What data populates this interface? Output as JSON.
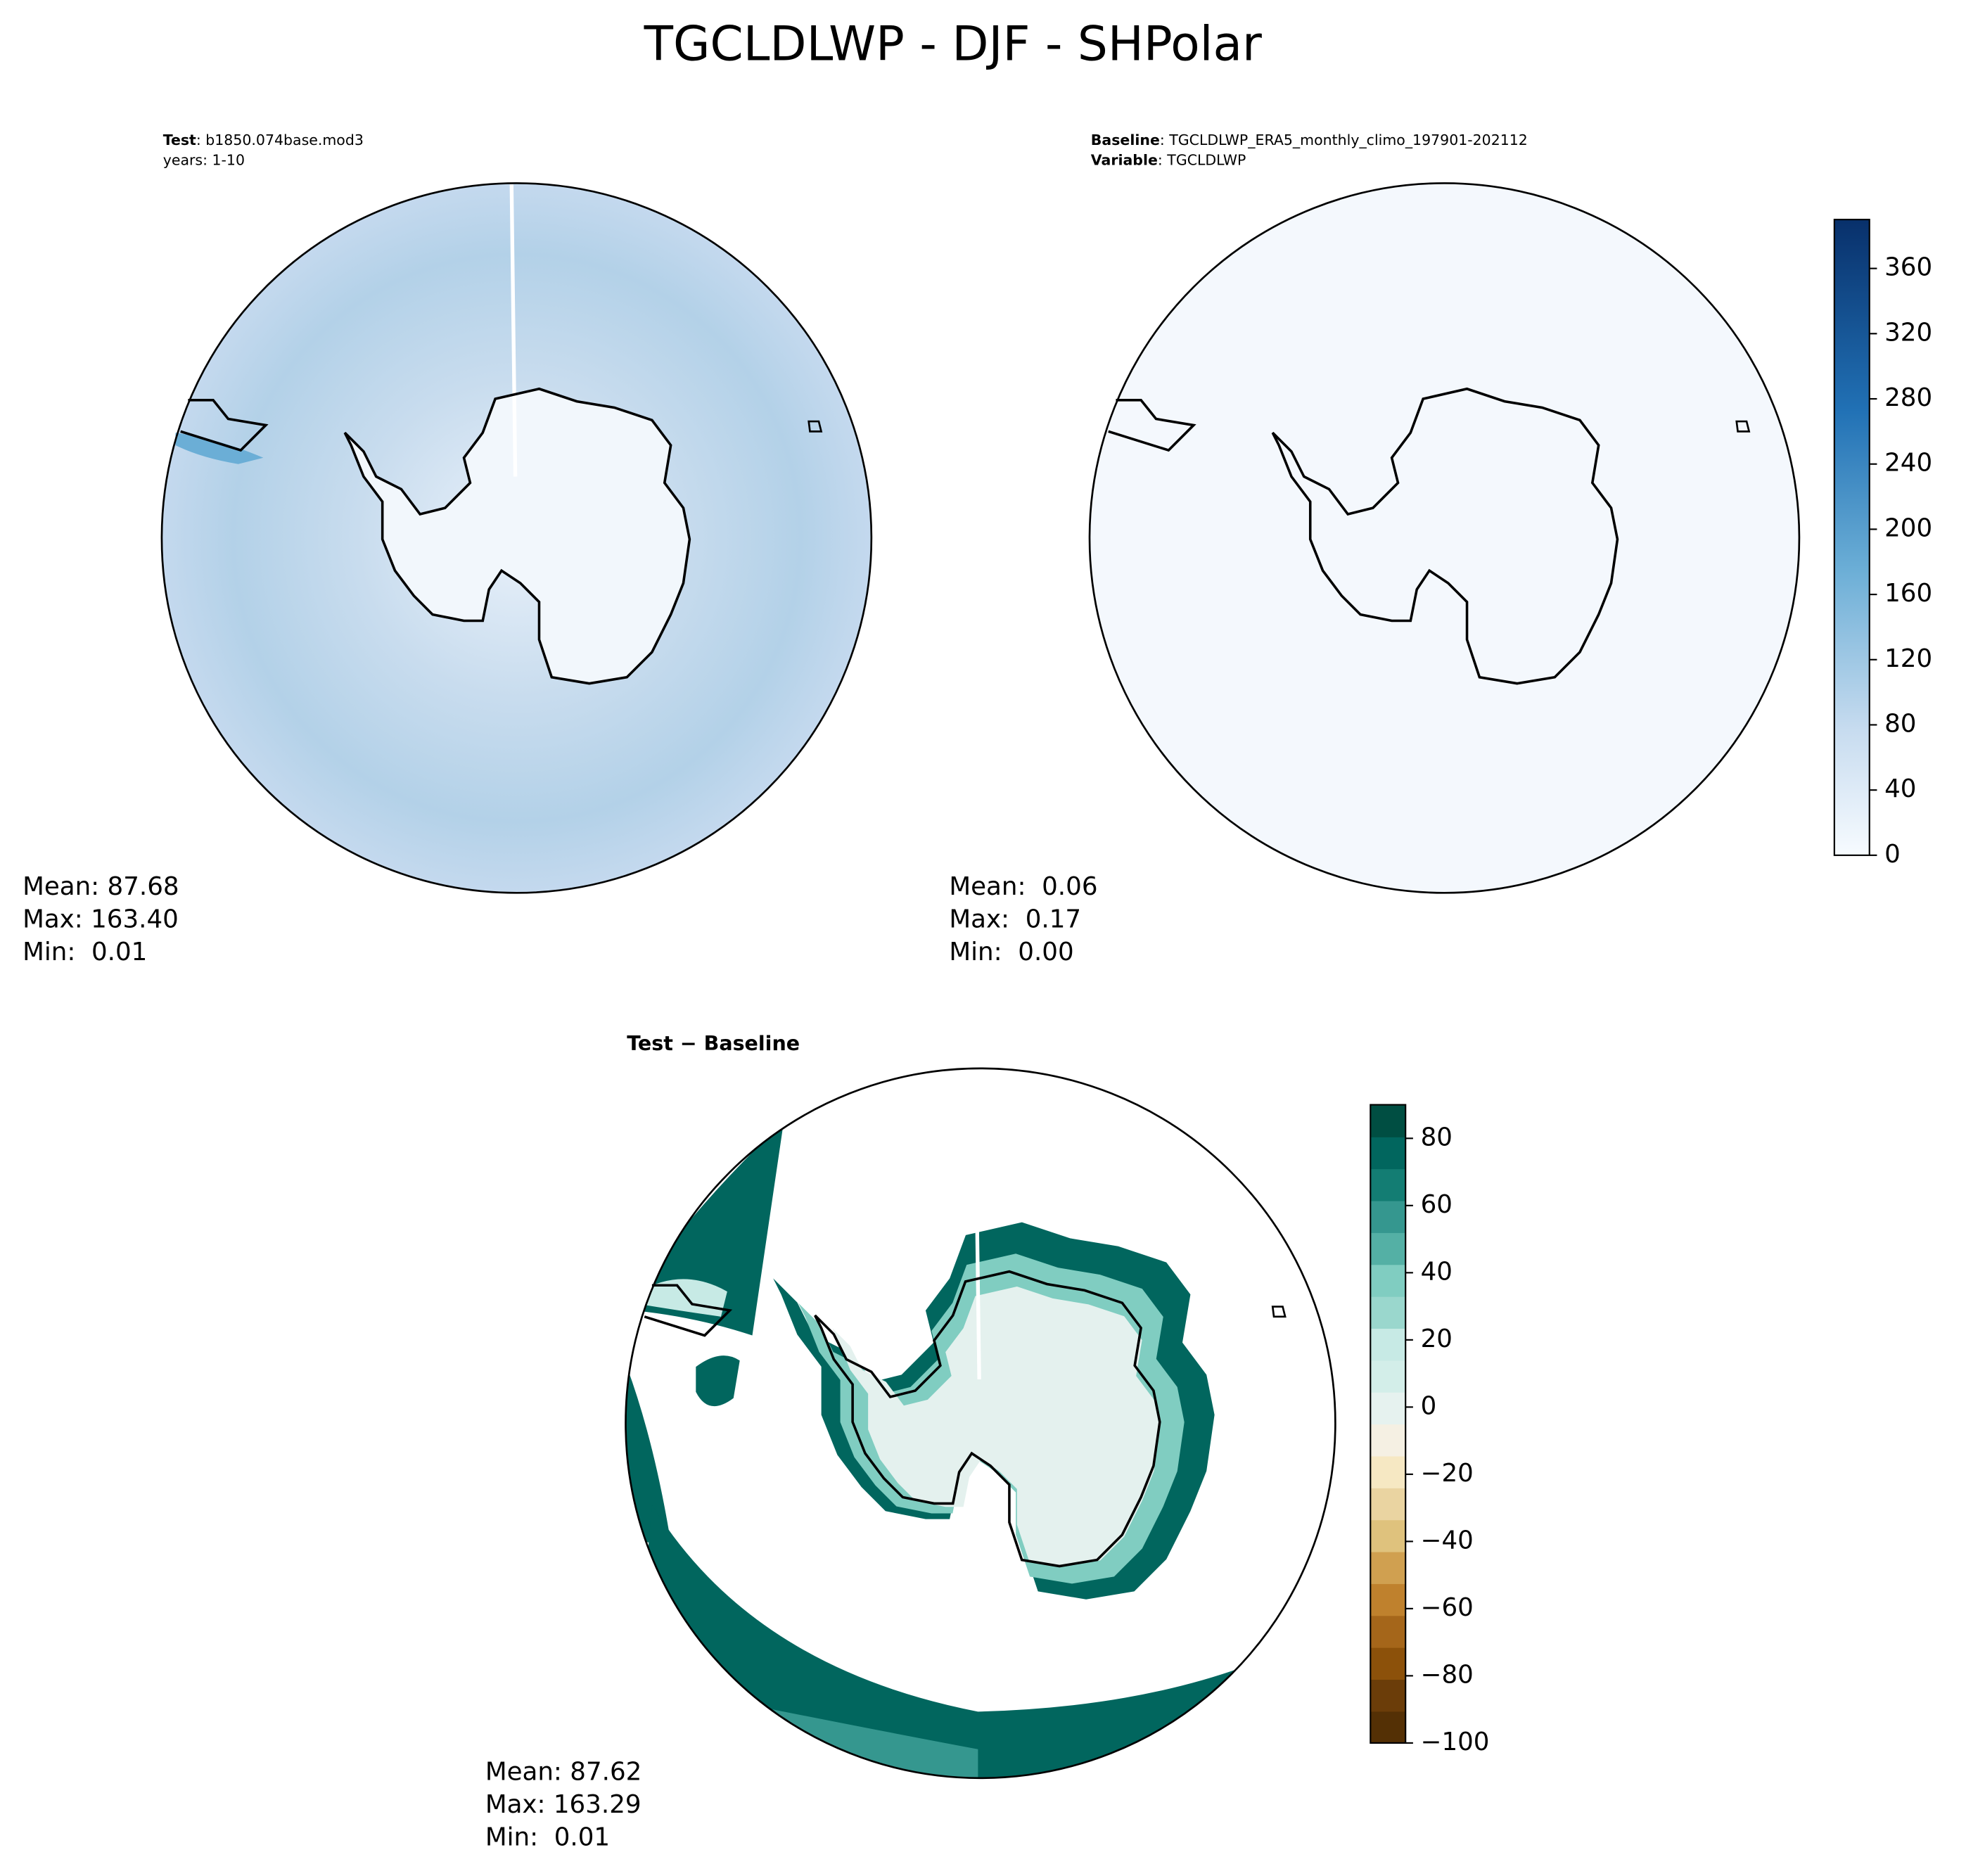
{
  "title": "TGCLDLWP - DJF - SHPolar",
  "panels": [
    {
      "header": [
        {
          "key": "Test",
          "text": ": b1850.074base.mod3"
        },
        {
          "text": "years: 1-10"
        }
      ],
      "stats": [
        "Mean: 87.68",
        "Max: 163.40",
        "Min:  0.01"
      ]
    },
    {
      "header": [
        {
          "key": "Baseline",
          "text": ": TGCLDLWP_ERA5_monthly_climo_197901-202112"
        },
        {
          "key": "Variable",
          "text": ": TGCLDLWP"
        }
      ],
      "stats": [
        "Mean:  0.06",
        "Max:  0.17",
        "Min:  0.00"
      ]
    },
    {
      "header": [
        {
          "key": "Test − Baseline"
        }
      ],
      "stats": [
        "Mean: 87.62",
        "Max: 163.29",
        "Min:  0.01"
      ]
    }
  ],
  "colorbars": [
    {
      "lim": [
        0,
        390
      ],
      "ticks": [
        0,
        40,
        80,
        120,
        160,
        200,
        240,
        280,
        320,
        360
      ]
    },
    {
      "lim": [
        -100,
        90
      ],
      "ticks": [
        {
          "value": -100,
          "label": "−100"
        },
        {
          "value": -80,
          "label": "−80"
        },
        {
          "value": -60,
          "label": "−60"
        },
        {
          "value": -40,
          "label": "−40"
        },
        {
          "value": -20,
          "label": "−20"
        },
        0,
        20,
        40,
        60,
        80
      ]
    }
  ]
}
